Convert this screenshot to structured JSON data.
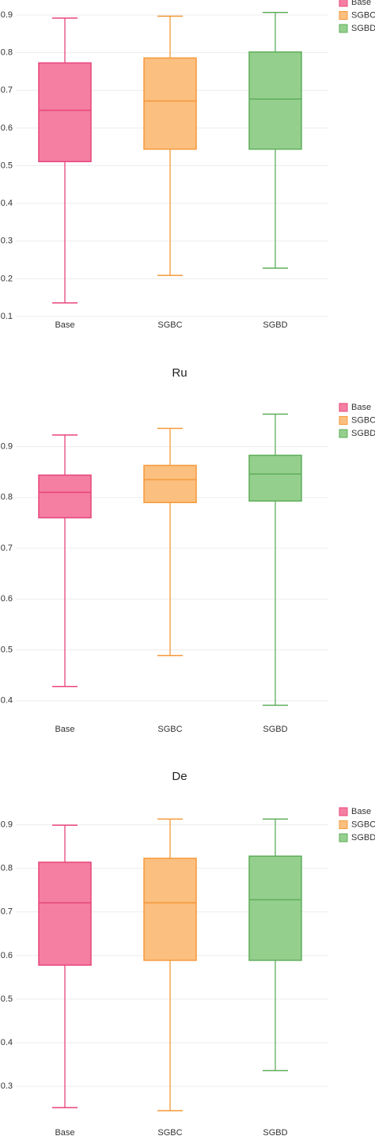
{
  "chart_data": [
    {
      "type": "box",
      "categories": [
        "Base",
        "SGBC",
        "SGBD"
      ],
      "colors": [
        "#e8457a",
        "#f5993a",
        "#5fae5a"
      ],
      "fills": [
        "#f47fa3",
        "#fbbf80",
        "#95cf8d"
      ],
      "min": [
        0.136,
        0.209,
        0.228
      ],
      "q1": [
        0.511,
        0.544,
        0.544
      ],
      "median": [
        0.647,
        0.672,
        0.677
      ],
      "q3": [
        0.773,
        0.786,
        0.802
      ],
      "max": [
        0.892,
        0.897,
        0.907
      ],
      "ylim": [
        0.1,
        0.94
      ],
      "yticks": [
        0.1,
        0.2,
        0.3,
        0.4,
        0.5,
        0.6,
        0.7,
        0.8,
        0.9
      ],
      "grid": true,
      "legend": "top-right"
    },
    {
      "type": "box",
      "title": "Ru",
      "categories": [
        "Base",
        "SGBC",
        "SGBD"
      ],
      "colors": [
        "#e8457a",
        "#f5993a",
        "#5fae5a"
      ],
      "fills": [
        "#f47fa3",
        "#fbbf80",
        "#95cf8d"
      ],
      "min": [
        0.428,
        0.489,
        0.391
      ],
      "q1": [
        0.76,
        0.79,
        0.793
      ],
      "median": [
        0.81,
        0.835,
        0.846
      ],
      "q3": [
        0.844,
        0.863,
        0.883
      ],
      "max": [
        0.923,
        0.936,
        0.964
      ],
      "ylim": [
        0.37,
        0.985
      ],
      "yticks": [
        0.4,
        0.5,
        0.6,
        0.7,
        0.8,
        0.9
      ],
      "grid": true,
      "legend": "top-right"
    },
    {
      "type": "box",
      "title": "De",
      "categories": [
        "Base",
        "SGBC",
        "SGBD"
      ],
      "colors": [
        "#e8457a",
        "#f5993a",
        "#5fae5a"
      ],
      "fills": [
        "#f47fa3",
        "#fbbf80",
        "#95cf8d"
      ],
      "min": [
        0.251,
        0.244,
        0.336
      ],
      "q1": [
        0.578,
        0.589,
        0.589
      ],
      "median": [
        0.721,
        0.721,
        0.728
      ],
      "q3": [
        0.814,
        0.823,
        0.828
      ],
      "max": [
        0.899,
        0.913,
        0.913
      ],
      "ylim": [
        0.215,
        0.941
      ],
      "yticks": [
        0.3,
        0.4,
        0.5,
        0.6,
        0.7,
        0.8,
        0.9
      ],
      "grid": true,
      "legend": "top-right"
    }
  ]
}
